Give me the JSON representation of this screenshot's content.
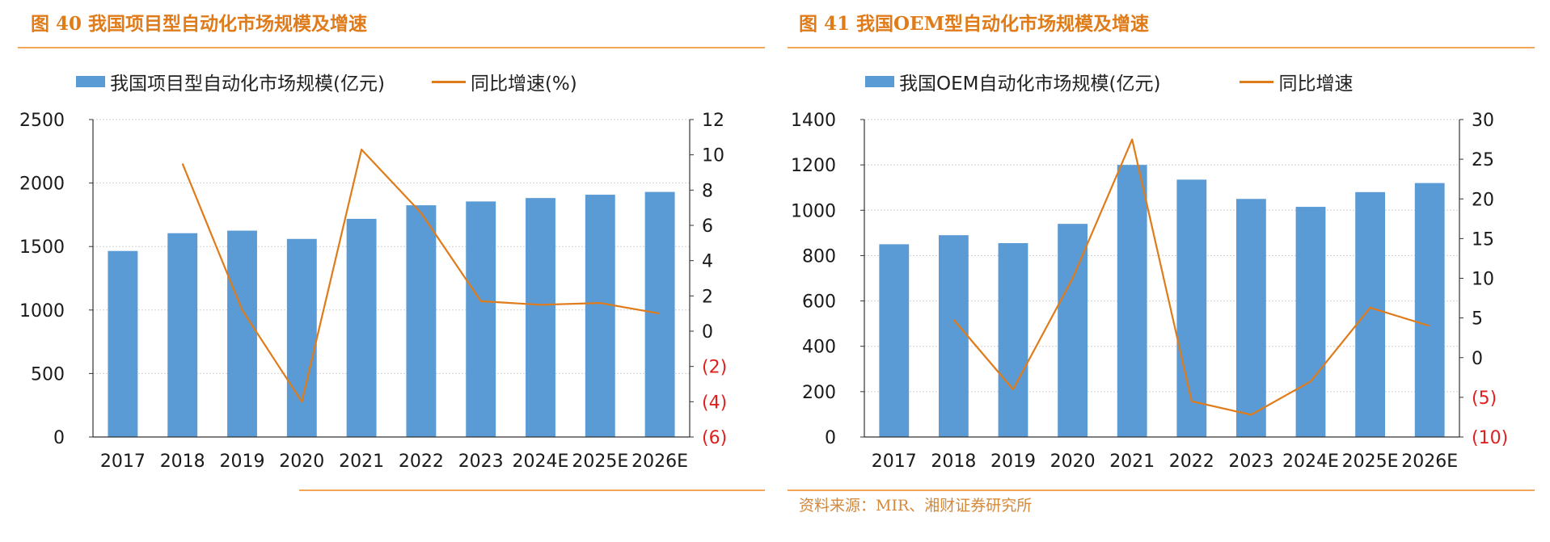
{
  "figures": [
    {
      "title": "图 40 我国项目型自动化市场规模及增速",
      "legend_bar": "我国项目型自动化市场规模(亿元)",
      "legend_line": "同比增速(%)",
      "source": ""
    },
    {
      "title": "图 41 我国OEM型自动化市场规模及增速",
      "legend_bar": "我国OEM自动化市场规模(亿元)",
      "legend_line": "同比增速",
      "source": "资料来源：MIR、湘财证券研究所"
    }
  ],
  "colors": {
    "bar": "#5b9bd5",
    "line": "#e07b1a",
    "negative_tick": "#e02020",
    "title": "#e07b1a"
  },
  "chart_data": [
    {
      "type": "bar",
      "categories": [
        "2017",
        "2018",
        "2019",
        "2020",
        "2021",
        "2022",
        "2023",
        "2024E",
        "2025E",
        "2026E"
      ],
      "series": [
        {
          "name": "我国项目型自动化市场规模(亿元)",
          "type": "bar",
          "axis": "left",
          "values": [
            1465,
            1605,
            1625,
            1560,
            1718,
            1825,
            1855,
            1882,
            1908,
            1930
          ]
        },
        {
          "name": "同比增速(%)",
          "type": "line",
          "axis": "right",
          "values": [
            null,
            9.5,
            1.2,
            -4.0,
            10.3,
            6.7,
            1.7,
            1.5,
            1.6,
            1.0
          ]
        }
      ],
      "ylim_left": [
        0,
        2500
      ],
      "yticks_left": [
        "0",
        "500",
        "1000",
        "1500",
        "2000",
        "2500"
      ],
      "ylim_right": [
        -6,
        12
      ],
      "yticks_right": [
        "(6)",
        "(4)",
        "(2)",
        "0",
        "2",
        "4",
        "6",
        "8",
        "10",
        "12"
      ],
      "grid": true
    },
    {
      "type": "bar",
      "categories": [
        "2017",
        "2018",
        "2019",
        "2020",
        "2021",
        "2022",
        "2023",
        "2024E",
        "2025E",
        "2026E"
      ],
      "series": [
        {
          "name": "我国OEM自动化市场规模(亿元)",
          "type": "bar",
          "axis": "left",
          "values": [
            850,
            890,
            855,
            940,
            1200,
            1135,
            1050,
            1015,
            1080,
            1120
          ]
        },
        {
          "name": "同比增速",
          "type": "line",
          "axis": "right",
          "values": [
            null,
            4.8,
            -4.0,
            10.0,
            27.5,
            -5.5,
            -7.2,
            -3.0,
            6.3,
            4.0
          ]
        }
      ],
      "ylim_left": [
        0,
        1400
      ],
      "yticks_left": [
        "0",
        "200",
        "400",
        "600",
        "800",
        "1000",
        "1200",
        "1400"
      ],
      "ylim_right": [
        -10,
        30
      ],
      "yticks_right": [
        "(10)",
        "(5)",
        "0",
        "5",
        "10",
        "15",
        "20",
        "25",
        "30"
      ],
      "grid": true
    }
  ]
}
